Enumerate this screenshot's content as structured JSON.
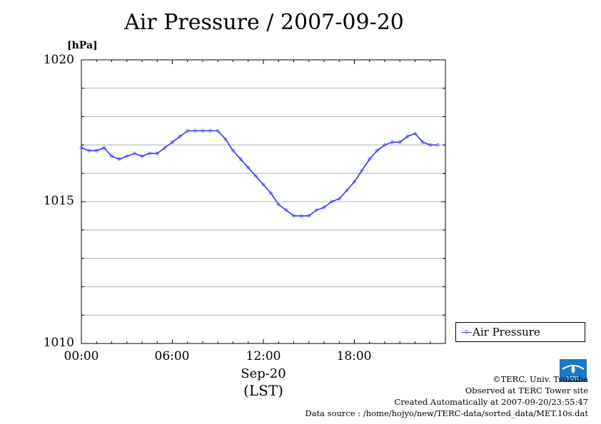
{
  "chart_data": {
    "type": "line",
    "title": "Air Pressure / 2007-09-20",
    "ylabel": "[hPa]",
    "ylim": [
      1010,
      1020
    ],
    "yticks": [
      "1010",
      "1015",
      "1020"
    ],
    "xlim": [
      0,
      24
    ],
    "xticks": [
      "00:00",
      "06:00",
      "12:00",
      "18:00"
    ],
    "xlabel_date": "Sep-20",
    "xlabel_tz": "(LST)",
    "grid": true,
    "legend_position": "right-bottom-outside",
    "series": [
      {
        "name": "Air Pressure",
        "color": "#3333ff",
        "marker_color": "#6666ff",
        "x": [
          0,
          0.5,
          1,
          1.5,
          2,
          2.5,
          3,
          3.5,
          4,
          4.5,
          5,
          5.5,
          6,
          6.5,
          7,
          7.5,
          8,
          8.5,
          9,
          9.5,
          10,
          10.5,
          11,
          11.5,
          12,
          12.5,
          13,
          13.5,
          14,
          14.5,
          15,
          15.5,
          16,
          16.5,
          17,
          17.5,
          18,
          18.5,
          19,
          19.5,
          20,
          20.5,
          21,
          21.5,
          22,
          22.5,
          23,
          23.5
        ],
        "y": [
          1016.9,
          1016.8,
          1016.8,
          1016.9,
          1016.6,
          1016.5,
          1016.6,
          1016.7,
          1016.6,
          1016.7,
          1016.7,
          1016.9,
          1017.1,
          1017.3,
          1017.5,
          1017.5,
          1017.5,
          1017.5,
          1017.5,
          1017.2,
          1016.8,
          1016.5,
          1016.2,
          1015.9,
          1015.6,
          1015.3,
          1014.9,
          1014.7,
          1014.5,
          1014.5,
          1014.5,
          1014.7,
          1014.8,
          1015.0,
          1015.1,
          1015.4,
          1015.7,
          1016.1,
          1016.5,
          1016.8,
          1017.0,
          1017.1,
          1017.1,
          1017.3,
          1017.4,
          1017.1,
          1017.0,
          1017.0
        ]
      }
    ]
  },
  "credits": {
    "copyright": "©TERC, Univ. Tsukuba",
    "site": "Observed at TERC Tower site",
    "created": "Created Automatically at 2007-09-20/23:55:47",
    "source": "Data source : /home/hojyo/new/TERC-data/sorted_data/MET.10s.dat",
    "logo_text": "TERC"
  }
}
